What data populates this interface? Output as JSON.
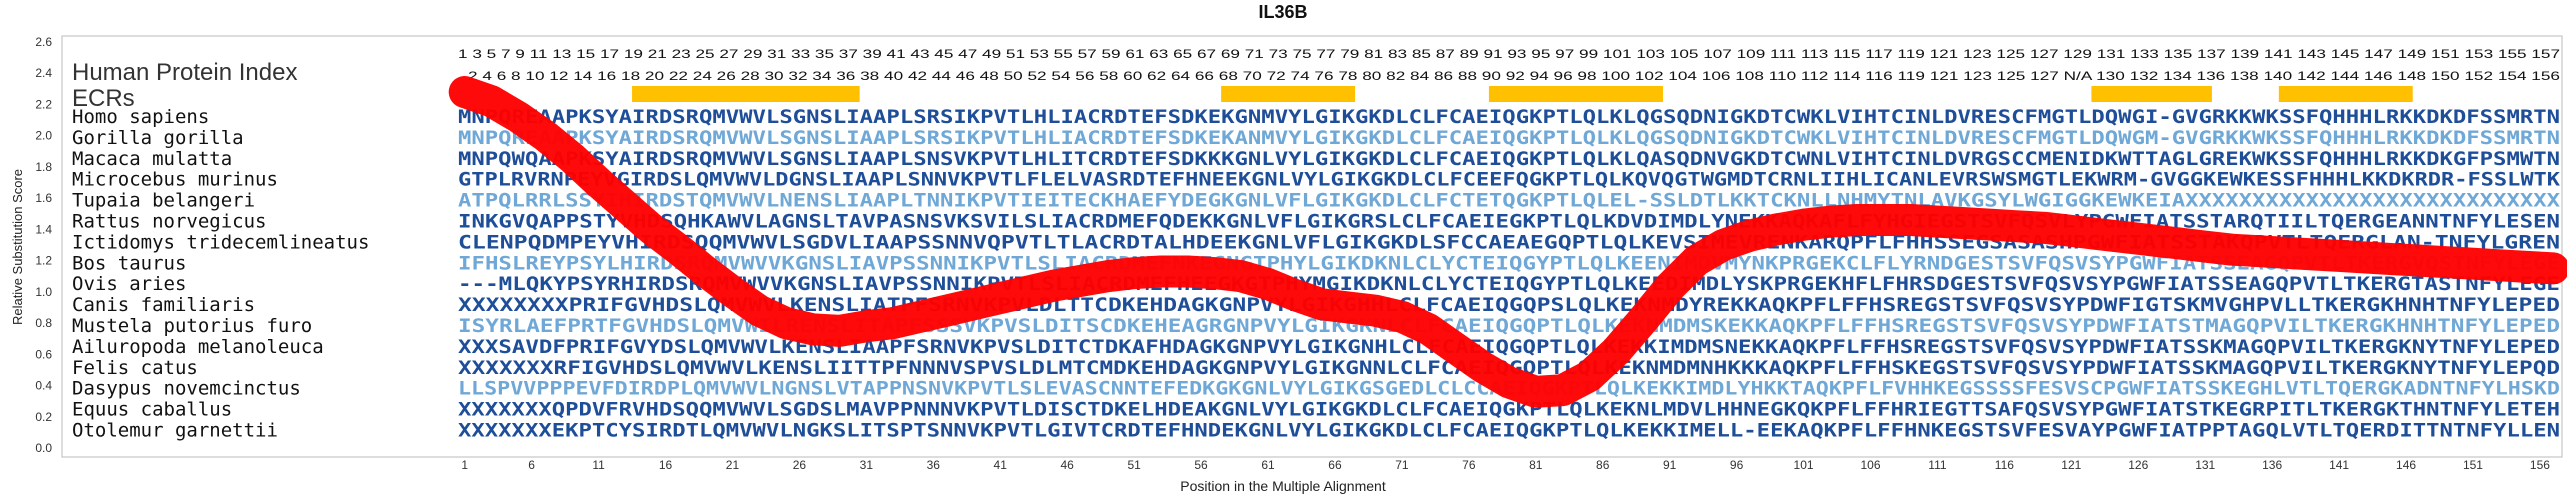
{
  "chart_data": {
    "type": "heatmap",
    "title": "IL36B",
    "xlabel": "Position in the Multiple Alignment",
    "ylabel": "Relative Substitution Score",
    "ylim": [
      0,
      2.6
    ],
    "yticks": [
      "0.0",
      "0.2",
      "0.4",
      "0.6",
      "0.8",
      "1.0",
      "1.2",
      "1.4",
      "1.6",
      "1.8",
      "2.0",
      "2.2",
      "2.4",
      "2.6"
    ],
    "xticks": [
      1,
      6,
      11,
      16,
      21,
      26,
      31,
      36,
      41,
      46,
      51,
      56,
      61,
      66,
      71,
      76,
      81,
      86,
      91,
      96,
      101,
      106,
      111,
      116,
      121,
      126,
      131,
      136,
      141,
      146,
      151,
      156
    ],
    "top_numbers_row1": "1 3 5 7 9 11 13 15 17 19 21 23 25 27 29 31 33 35 37 39 41 43 45 47 49 51 53 55 57 59 61 63 65 67 69 71 73 75 77 79 81 83 85 87 89 91 93 95 97 99 101 103 105 107 109 111 113 115 117 119 121 123 125 127 129 131 133 135 137 139 141 143 145 147 149 151 153 155 157",
    "top_numbers_row2": "2 4 6 8 10 12 14 16 18 20 22 24 26 28 30 32 34 36 38 40 42 44 46 48 50 52 54 56 58 60 62 64 66 68 70 72 74 76 78 80 82 84 86 88 90 92 94 96 98 100 102 104 106 108 110 112 114 116 119 121 123 125 127 N/A 130 132 134 136 138 140 142 144 146 148 150 152 154 156",
    "labels": {
      "hpi": "Human Protein Index",
      "ecrs": "ECRs"
    },
    "ecr_ranges": [
      [
        14,
        30
      ],
      [
        58,
        67
      ],
      [
        78,
        90
      ],
      [
        123,
        131
      ],
      [
        137,
        146
      ]
    ],
    "curve": {
      "name": "Relative Substitution Score",
      "x": [
        1,
        3,
        5,
        7,
        9,
        11,
        13,
        15,
        17,
        19,
        21,
        23,
        25,
        27,
        29,
        31,
        33,
        35,
        37,
        39,
        41,
        43,
        45,
        47,
        49,
        51,
        53,
        55,
        57,
        59,
        61,
        63,
        65,
        67,
        69,
        71,
        73,
        75,
        77,
        79,
        81,
        83,
        85,
        87,
        89,
        91,
        93,
        95,
        97,
        99,
        101,
        103,
        105,
        107,
        109,
        111,
        113,
        115,
        117,
        119,
        121,
        123,
        125,
        127,
        129,
        131,
        133,
        135,
        137,
        139,
        141,
        143,
        145,
        147,
        149,
        151,
        153,
        155,
        157
      ],
      "y": [
        2.28,
        2.22,
        2.12,
        2.0,
        1.86,
        1.7,
        1.55,
        1.4,
        1.27,
        1.13,
        1.0,
        0.88,
        0.8,
        0.76,
        0.75,
        0.78,
        0.8,
        0.84,
        0.88,
        0.92,
        0.96,
        1.0,
        1.04,
        1.07,
        1.1,
        1.12,
        1.13,
        1.13,
        1.12,
        1.1,
        1.05,
        0.98,
        0.92,
        0.9,
        0.88,
        0.84,
        0.76,
        0.64,
        0.52,
        0.42,
        0.36,
        0.37,
        0.46,
        0.62,
        0.82,
        1.03,
        1.2,
        1.3,
        1.36,
        1.4,
        1.43,
        1.45,
        1.46,
        1.46,
        1.46,
        1.45,
        1.44,
        1.43,
        1.42,
        1.41,
        1.39,
        1.37,
        1.35,
        1.33,
        1.31,
        1.29,
        1.27,
        1.26,
        1.25,
        1.24,
        1.23,
        1.22,
        1.21,
        1.2,
        1.19,
        1.18,
        1.17,
        1.16,
        1.15
      ],
      "color": "#ff0000"
    },
    "colors": {
      "ecr": "#ffc000",
      "curve": "#ff0000",
      "dark": "#1f4e99",
      "light": "#6fa8d6"
    },
    "species": [
      {
        "name": "Homo sapiens",
        "seq": "MNPQREAAPKSYAIRDSRQMVWVLSGNSLIAAPLSRSIKPVTLHLIACRDTEFSDKEKGNMVYLGIKGKDLCLFCAEIQGKPTLQLKLQGSQDNIGKDTCWKLVIHTCINLDVRESCFMGTLDQWGI-GVGRKKWKSSFQHHHLRKKDKDFSSMRTN"
      },
      {
        "name": "Gorilla gorilla",
        "seq": "MNPQREAAPKSYAIRDSRQMVWVLSGNSLIAAPLSRSIKPVTLHLIACRDTEFSDKEKANMVYLGIKGKDLCLFCAEIQGKPTLQLKLQGSQDNIGKDTCWKLVIHTCINLDVRESCFMGTLDQWGM-GVGRKKWKSSFQHHHLRKKDKDFSSMRTN"
      },
      {
        "name": "Macaca mulatta",
        "seq": "MNPQWQAAPKSYAIRDSRQMVWVLSGNSLIAAPLSNSVKPVTLHLITCRDTEFSDKKKGNLVYLGIKGKDLCLFCAEIQGKPTLQLKLQASQDNVGKDTCWNLVIHTCINLDVRGSCCMENIDKWTTAGLGREKWKSSFQHHHLRKKDKGFPSMWTN"
      },
      {
        "name": "Microcebus murinus",
        "seq": "GTPLRVRNPEYVGIRDSLQMVWVLDGNSLIAAPLSNNVKPVTLFLELVASRDTEFHNEEKGNLVYLGIKGKDLCLFCEEFQGKPTLQLKQVQGTWGMDTCRNLIIHLICANLEVRSWSMGTLEKWRM-GVGGKEWKESSFHHHLKKDKRDR-FSSLWTK"
      },
      {
        "name": "Tupaia belangeri",
        "seq": "ATPQLRRLSSYIHIRDSTQMVWVLNENSLIAAPLTNNIKPVTIEITECKHAEFYDEGKGNLVFLGIKGKDLCLFCTETQGKPTLQLEL-SSLDTLKKTCKNLLNHMYTNLAVKGSYLWGIGGKEWKEIAXXXXXXXXXXXXXXXXXXXXXXXXXXXX"
      },
      {
        "name": "Rattus norvegicus",
        "seq": "INKGVQAPPSTYVHDSQHKAWVLAGNSLTAVPASNSVKSVILSLIACRDMEFQDEKKGNLVFLGIKGRSLCLFCAEIEGKPTLQLKDVDIMDLYNEKKAQKAFLFYHGIEGSTSVFQSVLYPGWFIATSSTARQTIILTQERGEANNTNFYLESEN"
      },
      {
        "name": "Ictidomys tridecemlineatus",
        "seq": "CLENPQDMPEYVHIRDSQQMVWVLSGDVLIAAPSSNNVQPVTLTLACRDTALHDEEKGNLVFLGIKGKDLSFCCAEAEGQPTLQLKEVSIMEVRENKARQPFLFHHSSEGSASASHPGWFIATSSTAKQPVTLTQERGLAN-TNFYLGREN"
      },
      {
        "name": "Bos taurus",
        "seq": "IFHSLREYPSYLHIRDSRQMVWVVKGNSLIAVPSSNNIKPVTLSLIACRDMEFNKEGNGTPHYLGIKDKNLCLYCTEIQGYPTLQLKEENIMDVMYNKPRGEKCLFLYRNDGESTSVFQSVSYPGWFIATSSEAGQPVTLTKERGVQSTNFYLEGE"
      },
      {
        "name": "Ovis aries",
        "seq": "---MLQKYPSYRHIRDSRQMVWVVKGNSLIAVPSSNNIKPVTLSLIACRDMEFHEEGKGTPHYMGIKDKNLCLYCTEIQGYPTLQLKEEDIMDLYSKPRGEKHFLFHRSDGESTSVFQSVSYPGWFIATSSEAGQPVTLTKERGTASTNFYLEGE"
      },
      {
        "name": "Canis familiaris",
        "seq": "XXXXXXXXPRIFGVHDSLQMVWVLKENSLIATPFSRNVKPVLDLTTCDKEHDAGKGNPVYLGIKGHHLCLFCAEIQGQPSLQLKEKNMDYREKKAQKPFLFFHSREGSTSVFQSVSYPDWFIGTSKMVGHPVLLTKERGKHNHTNFYLEPED"
      },
      {
        "name": "Mustela putorius furo",
        "seq": "ISYRLAEFPRTFGVHDSLQMVWILRENSLITAPFSSSVKPVSLDITSCDKEHEAGRGNPVYLGIKGKNLCLFCAEIQGQPTLQLKEKNMDMSKEKKAQKPFLFFHSREGSTSVFQSVSYPDWFIATSTMAGQPVILTKERGKHNHTNFYLEPED"
      },
      {
        "name": "Ailuropoda melanoleuca",
        "seq": "XXXSAVDFPRIFGVYDSLQMVWVLKENSLIAAPFSRNVKPVSLDITCTDKAFHDAGKGNPVYLGIKGNHLCLFCAEIQGQPTLQLKEKKIMDMSNEKKAQKPFLFFHSREGSTSVFQSVSYPDWFIATSSKMAGQPVILTKERGKNYTNFYLEPED"
      },
      {
        "name": "Felis catus",
        "seq": "XXXXXXXRFIGVHDSLQMVWVLKENSLIITTPFNNNVSPVSLDLMTCMDKEHDAGKGNPVYLGIKGNNLCLFCAEIQGQPTLQLKEKNMDMNHKKKAQKPFLFFHSKEGSTSVFQSVSYPDWFIATSSKMAGQPVILTKERGKNYTNFYLEPQD"
      },
      {
        "name": "Dasypus novemcinctus",
        "seq": "LLSPVVPPPEVFDIRDPLQMVWVLNGNSLVTAPPNSNVKPVTLSLEVASCNNTEFEDKGKGNLVYLGIKGSGEDLCLCCAEIQGKPTLQLKEKKIMDLYHKKTAQKPFLFVHHKEGSSSSFESVSCPGWFIATSSKEGHLVTLTQERGKADNTNFYLHSKD"
      },
      {
        "name": "Equus caballus",
        "seq": "XXXXXXXQPDVFRVHDSQQMVWVLSGDSLMAVPPNNNVKPVTLDISCTDKELHDEAKGNLVYLGIKGKDLCLFCAEIQGKPTLQLKEKNLMDVLHHNEGKQKPFLFFHRIEGTTSAFQSVSYPGWFIATSTKEGRPITLTKERGKTHNTNFYLETEH"
      },
      {
        "name": "Otolemur garnettii",
        "seq": "XXXXXXXEKPTCYSIRDTLQMVWVLNGKSLITSPTSNNVKPVTLGIVTCRDTEFHNDEKGNLVYLGIKGKDLCLFCAEIQGKPTLQLKEKKIMELL-EEKAQKPFLFFHNKEGSTSVFESVAYPGWFIATPPTAGQLVTLTQERDITTNTNFYLLEN"
      }
    ]
  }
}
